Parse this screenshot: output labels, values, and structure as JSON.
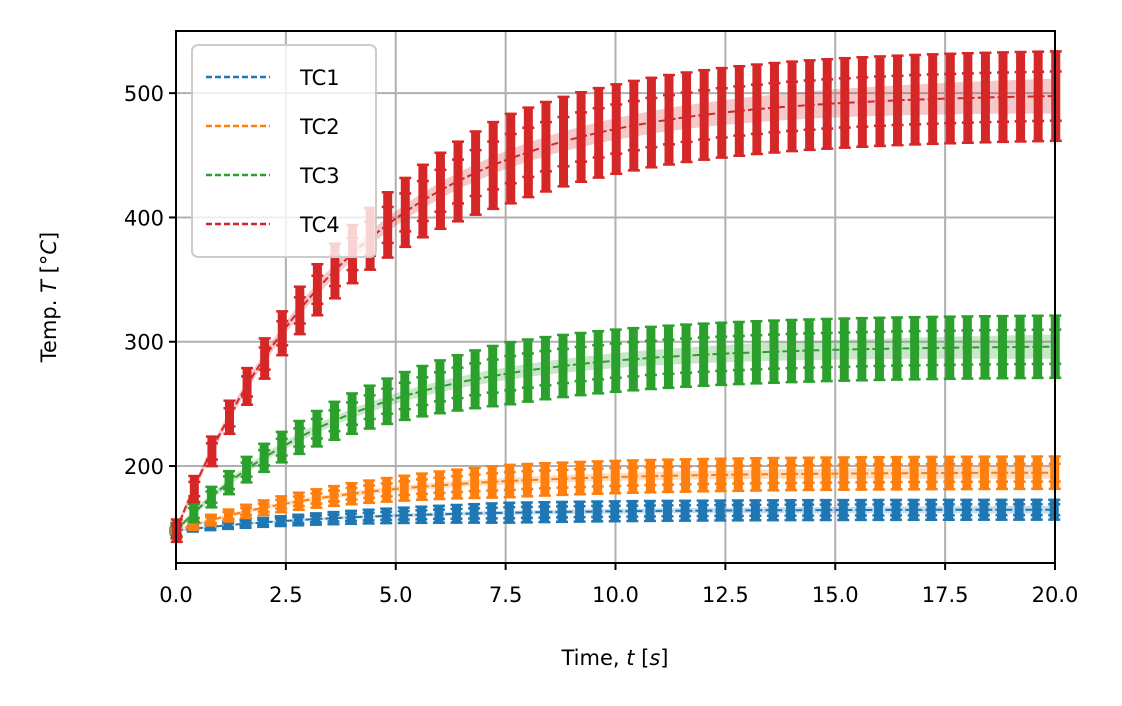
{
  "chart_data": {
    "type": "line",
    "xlabel": "Time, t [s]",
    "ylabel": "Temp. T  [°C]",
    "xlim": [
      0,
      20
    ],
    "ylim": [
      122,
      550
    ],
    "x_ticks": [
      "0.0",
      "2.5",
      "5.0",
      "7.5",
      "10.0",
      "12.5",
      "15.0",
      "17.5",
      "20.0"
    ],
    "y_ticks": [
      "200",
      "300",
      "400",
      "500"
    ],
    "grid": true,
    "legend_position": "top-left",
    "start_value": 148,
    "series": [
      {
        "name": "TC1",
        "color": "#1f77b4",
        "final_value": 165,
        "time_constant": 4,
        "error_halfwidth": 8
      },
      {
        "name": "TC2",
        "color": "#ff7f0e",
        "final_value": 195,
        "time_constant": 4,
        "error_halfwidth": 13
      },
      {
        "name": "TC3",
        "color": "#2ca02c",
        "final_value": 297,
        "time_constant": 4,
        "error_halfwidth": 25
      },
      {
        "name": "TC4",
        "color": "#d62728",
        "final_value": 500,
        "time_constant": 4,
        "error_halfwidth": 36
      }
    ],
    "sample_times_start": 0,
    "sample_times_end": 20,
    "sample_step": 0.4
  }
}
